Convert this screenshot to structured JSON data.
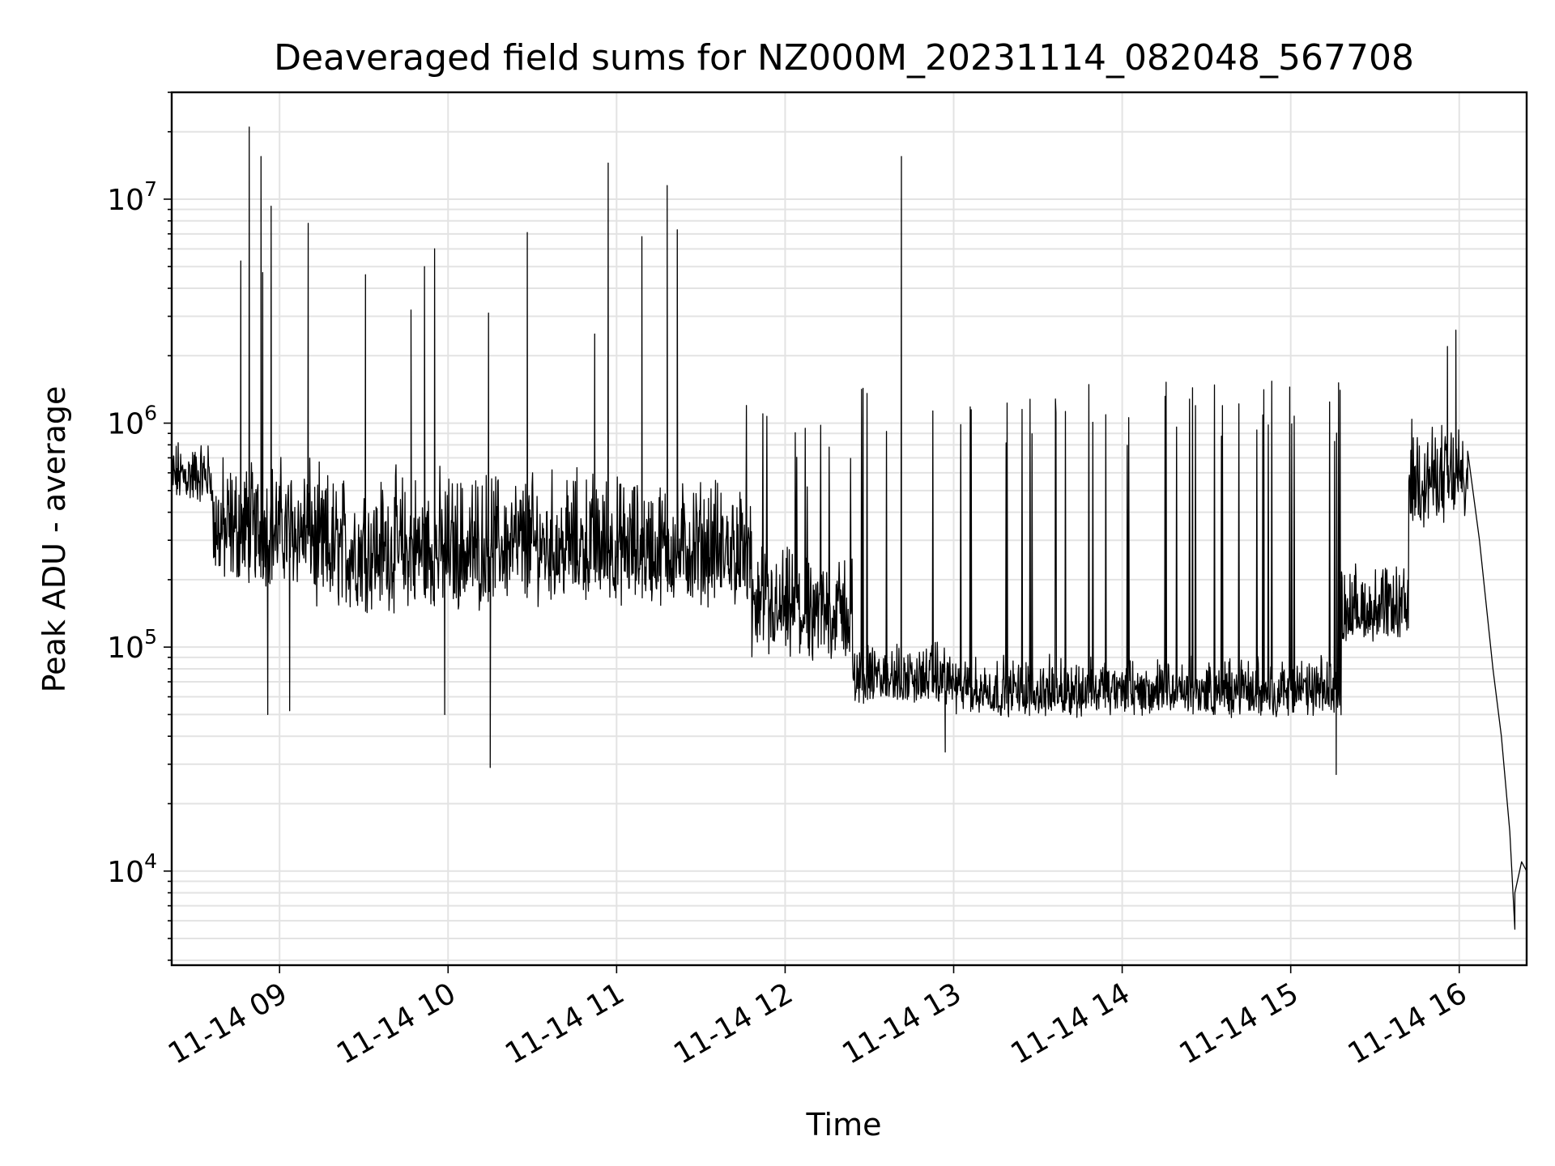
{
  "chart_data": {
    "type": "line",
    "title": "Deaveraged field sums for NZ000M_20231114_082048_567708",
    "xlabel": "Time",
    "ylabel": "Peak ADU - average",
    "x_tick_labels": [
      "11-14 09",
      "11-14 10",
      "11-14 11",
      "11-14 12",
      "11-14 13",
      "11-14 14",
      "11-14 15",
      "11-14 16"
    ],
    "x_tick_hours": [
      9,
      10,
      11,
      12,
      13,
      14,
      15,
      16
    ],
    "xlim_hours": [
      8.36,
      16.4
    ],
    "y_scale": "log",
    "ylim": [
      3800,
      30000000
    ],
    "y_tick_values": [
      10000,
      100000,
      1000000,
      10000000
    ],
    "y_tick_labels": [
      {
        "base": "10",
        "exp": "4"
      },
      {
        "base": "10",
        "exp": "5"
      },
      {
        "base": "10",
        "exp": "6"
      },
      {
        "base": "10",
        "exp": "7"
      }
    ],
    "grid": true,
    "line_color": "#000000",
    "series": [
      {
        "baseline_segments": [
          {
            "t0": 8.36,
            "t1": 8.6,
            "lo": 350000,
            "hi": 900000
          },
          {
            "t0": 8.6,
            "t1": 9.2,
            "lo": 120000,
            "hi": 800000
          },
          {
            "t0": 9.2,
            "t1": 10.2,
            "lo": 90000,
            "hi": 700000
          },
          {
            "t0": 10.2,
            "t1": 11.0,
            "lo": 100000,
            "hi": 700000
          },
          {
            "t0": 11.0,
            "t1": 11.8,
            "lo": 100000,
            "hi": 650000
          },
          {
            "t0": 11.8,
            "t1": 12.4,
            "lo": 60000,
            "hi": 300000
          },
          {
            "t0": 12.4,
            "t1": 13.0,
            "lo": 45000,
            "hi": 110000
          },
          {
            "t0": 13.0,
            "t1": 15.3,
            "lo": 40000,
            "hi": 95000
          },
          {
            "t0": 15.3,
            "t1": 15.7,
            "lo": 80000,
            "hi": 250000
          },
          {
            "t0": 15.7,
            "t1": 16.05,
            "lo": 250000,
            "hi": 1100000
          }
        ],
        "decay": [
          {
            "t": 16.05,
            "v": 750000
          },
          {
            "t": 16.12,
            "v": 300000
          },
          {
            "t": 16.2,
            "v": 80000
          },
          {
            "t": 16.25,
            "v": 40000
          },
          {
            "t": 16.3,
            "v": 15000
          },
          {
            "t": 16.33,
            "v": 8000
          },
          {
            "t": 16.37,
            "v": 11000
          },
          {
            "t": 16.4,
            "v": 10000
          }
        ],
        "spikes": [
          {
            "t": 8.77,
            "v": 5300000
          },
          {
            "t": 8.82,
            "v": 21000000
          },
          {
            "t": 8.89,
            "v": 15500000
          },
          {
            "t": 8.9,
            "v": 4700000
          },
          {
            "t": 8.95,
            "v": 9300000
          },
          {
            "t": 9.17,
            "v": 7800000
          },
          {
            "t": 9.51,
            "v": 4600000
          },
          {
            "t": 9.78,
            "v": 3200000
          },
          {
            "t": 9.86,
            "v": 5000000
          },
          {
            "t": 9.92,
            "v": 6000000
          },
          {
            "t": 10.24,
            "v": 3100000
          },
          {
            "t": 10.47,
            "v": 7100000
          },
          {
            "t": 10.87,
            "v": 2500000
          },
          {
            "t": 10.95,
            "v": 14500000
          },
          {
            "t": 11.15,
            "v": 6800000
          },
          {
            "t": 11.3,
            "v": 11500000
          },
          {
            "t": 11.36,
            "v": 7300000
          },
          {
            "t": 12.69,
            "v": 15500000
          },
          {
            "t": 15.98,
            "v": 2600000
          },
          {
            "t": 15.93,
            "v": 2200000
          }
        ],
        "dips": [
          {
            "t": 8.93,
            "v": 50000
          },
          {
            "t": 9.06,
            "v": 52000
          },
          {
            "t": 9.98,
            "v": 50000
          },
          {
            "t": 10.25,
            "v": 29000
          },
          {
            "t": 12.95,
            "v": 34000
          },
          {
            "t": 15.27,
            "v": 27000
          },
          {
            "t": 16.33,
            "v": 5500
          }
        ]
      }
    ]
  }
}
